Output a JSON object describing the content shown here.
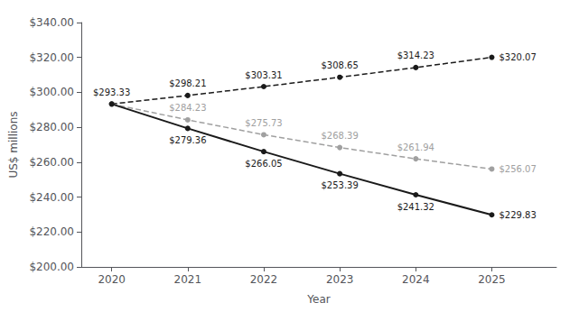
{
  "chart_data": {
    "type": "line",
    "xlabel": "Year",
    "ylabel": "US$ millions",
    "x": [
      2020,
      2021,
      2022,
      2023,
      2024,
      2025
    ],
    "xlim": [
      2019.6,
      2025.85
    ],
    "xticks": [
      2020,
      2021,
      2022,
      2023,
      2024,
      2025
    ],
    "ylim": [
      200,
      340
    ],
    "yticks": [
      {
        "value": 200,
        "label": "$200.00"
      },
      {
        "value": 220,
        "label": "$220.00"
      },
      {
        "value": 240,
        "label": "$240.00"
      },
      {
        "value": 260,
        "label": "$260.00"
      },
      {
        "value": 280,
        "label": "$280.00"
      },
      {
        "value": 300,
        "label": "$300.00"
      },
      {
        "value": 320,
        "label": "$320.00"
      },
      {
        "value": 340,
        "label": "$340.00"
      }
    ],
    "grid": false,
    "data_labels": true,
    "series": [
      {
        "color": "#1a1a1a",
        "line_style": "dashed",
        "marker": "circle",
        "values": [
          293.33,
          298.21,
          303.31,
          308.65,
          314.23,
          320.07
        ],
        "value_labels": [
          "$293.33",
          "$298.21",
          "$303.31",
          "$308.65",
          "$314.23",
          "$320.07"
        ]
      },
      {
        "color": "#a0a0a0",
        "line_style": "dashed",
        "marker": "circle",
        "values": [
          293.33,
          284.23,
          275.73,
          268.39,
          261.94,
          256.07
        ],
        "value_labels": [
          null,
          "$284.23",
          "$275.73",
          "$268.39",
          "$261.94",
          "$256.07"
        ]
      },
      {
        "color": "#1a1a1a",
        "line_style": "solid",
        "marker": "circle",
        "values": [
          293.33,
          279.36,
          266.05,
          253.39,
          241.32,
          229.83
        ],
        "value_labels": [
          null,
          "$279.36",
          "$266.05",
          "$253.39",
          "$241.32",
          "$229.83"
        ]
      }
    ]
  }
}
